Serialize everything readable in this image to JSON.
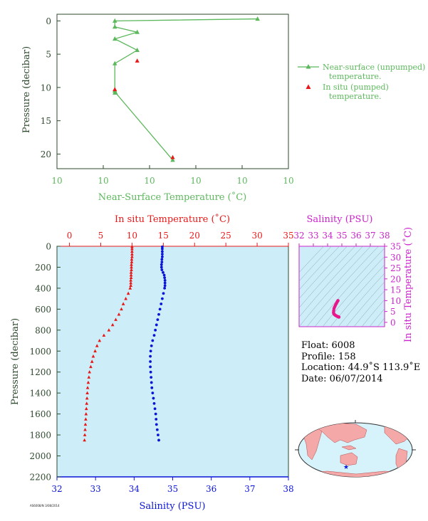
{
  "chart_data": [
    {
      "type": "line",
      "name": "near-surface",
      "xlabel": "Near-Surface Temperature (˚C)",
      "ylabel": "Pressure (decibar)",
      "x_tick_labels": [
        "10",
        "10",
        "10",
        "10",
        "10",
        "10"
      ],
      "y_ticks": [
        0,
        5,
        10,
        15,
        20
      ],
      "ylim": [
        22.2,
        -1
      ],
      "xlim": [
        9.925,
        10.075
      ],
      "y_inverted": true,
      "legend": {
        "placement": "right",
        "entries": [
          "Near-surface (unpumped) temperature.",
          "In situ (pumped) temperature."
        ]
      },
      "series": [
        {
          "name": "Near-surface (unpumped) temperature.",
          "color": "#5cb85c",
          "marker": "triangle",
          "x": [
            10.055,
            9.9625,
            9.9625,
            9.9625,
            9.9625,
            9.9625,
            9.9625,
            9.9625,
            9.9625,
            9.9625,
            10.0
          ],
          "y": [
            -0.3,
            0.0,
            0.9,
            1.7,
            2.7,
            4.4,
            6.4,
            10.5,
            10.8,
            10.8,
            20.9
          ],
          "x_actual": [
            10.055,
            9.9625,
            9.9625,
            9.977,
            9.9625,
            9.977,
            9.9625,
            9.9625,
            9.9625,
            9.963,
            10.0
          ]
        },
        {
          "name": "In situ (pumped) temperature.",
          "color": "#e81818",
          "marker": "triangle",
          "x": [
            9.977,
            9.9625,
            10.0
          ],
          "y": [
            6.0,
            10.3,
            20.5
          ]
        }
      ]
    },
    {
      "type": "scatter",
      "name": "profile",
      "x_top_label": "In situ Temperature (˚C)",
      "x_top_ticks": [
        0,
        5,
        10,
        15,
        20,
        25,
        30,
        35
      ],
      "x_top_lim": [
        -2,
        35
      ],
      "x_bottom_label": "Salinity (PSU)",
      "x_bottom_ticks": [
        32,
        33,
        34,
        35,
        36,
        37,
        38
      ],
      "x_bottom_lim": [
        32,
        38
      ],
      "ylabel": "Pressure (decibar)",
      "y_ticks": [
        0,
        200,
        400,
        600,
        800,
        1000,
        1200,
        1400,
        1600,
        1800,
        2000,
        2200
      ],
      "ylim": [
        2200,
        0
      ],
      "y_inverted": true,
      "series": [
        {
          "name": "temperature",
          "color": "#e81818",
          "marker": "triangle",
          "pressure": [
            5,
            25,
            50,
            75,
            100,
            125,
            150,
            175,
            200,
            225,
            250,
            275,
            300,
            325,
            350,
            375,
            400,
            450,
            500,
            550,
            600,
            650,
            700,
            750,
            800,
            850,
            900,
            950,
            1000,
            1050,
            1100,
            1150,
            1200,
            1250,
            1300,
            1350,
            1400,
            1450,
            1500,
            1550,
            1600,
            1650,
            1700,
            1750,
            1800,
            1850
          ],
          "temperature": [
            10.0,
            10.0,
            10.0,
            10.0,
            10.0,
            9.95,
            9.95,
            9.9,
            9.9,
            9.9,
            9.85,
            9.85,
            9.85,
            9.8,
            9.8,
            9.8,
            9.7,
            9.4,
            9.0,
            8.6,
            8.3,
            7.9,
            7.4,
            6.9,
            6.3,
            5.5,
            4.8,
            4.4,
            4.1,
            3.8,
            3.6,
            3.4,
            3.2,
            3.1,
            3.0,
            2.9,
            2.85,
            2.8,
            2.75,
            2.7,
            2.65,
            2.6,
            2.55,
            2.5,
            2.45,
            2.4
          ]
        },
        {
          "name": "salinity",
          "color": "#0a14d8",
          "marker": "circle",
          "pressure": [
            5,
            25,
            50,
            75,
            100,
            125,
            150,
            175,
            200,
            225,
            250,
            275,
            300,
            325,
            350,
            375,
            400,
            450,
            500,
            550,
            600,
            650,
            700,
            750,
            800,
            850,
            900,
            950,
            1000,
            1050,
            1100,
            1150,
            1200,
            1250,
            1300,
            1350,
            1400,
            1450,
            1500,
            1550,
            1600,
            1650,
            1700,
            1750,
            1800,
            1850
          ],
          "salinity": [
            34.73,
            34.73,
            34.73,
            34.73,
            34.73,
            34.72,
            34.72,
            34.71,
            34.71,
            34.72,
            34.75,
            34.78,
            34.79,
            34.8,
            34.8,
            34.8,
            34.79,
            34.76,
            34.73,
            34.7,
            34.67,
            34.64,
            34.61,
            34.58,
            34.55,
            34.52,
            34.48,
            34.45,
            34.43,
            34.42,
            34.42,
            34.42,
            34.43,
            34.44,
            34.45,
            34.46,
            34.48,
            34.5,
            34.52,
            34.54,
            34.56,
            34.57,
            34.58,
            34.6,
            34.62,
            34.64
          ]
        }
      ]
    },
    {
      "type": "scatter",
      "name": "ts-diagram",
      "xlabel": "Salinity (PSU)",
      "ylabel": "In situ Temperature (˚C)",
      "x_ticks": [
        32,
        33,
        34,
        35,
        36,
        37,
        38
      ],
      "xlim": [
        32,
        38
      ],
      "y_ticks": [
        0,
        5,
        10,
        15,
        20,
        25,
        30,
        35
      ],
      "ylim": [
        -2,
        35
      ],
      "color": "#e8188c",
      "series": [
        {
          "name": "ts",
          "salinity": [
            34.73,
            34.72,
            34.7,
            34.67,
            34.64,
            34.61,
            34.58,
            34.55,
            34.52,
            34.48,
            34.45,
            34.43,
            34.42,
            34.42,
            34.43,
            34.45,
            34.48,
            34.52,
            34.56,
            34.6,
            34.64,
            34.66,
            34.7,
            34.74,
            34.78,
            34.8,
            34.79
          ],
          "temperature": [
            10.0,
            9.95,
            9.7,
            9.4,
            9.0,
            8.6,
            8.3,
            7.9,
            7.4,
            6.9,
            6.3,
            5.5,
            4.8,
            4.4,
            4.1,
            3.8,
            3.6,
            3.4,
            3.2,
            3.0,
            2.9,
            2.8,
            2.7,
            2.6,
            2.5,
            2.45,
            2.4
          ]
        }
      ]
    }
  ],
  "info": {
    "float": "Float:  6008",
    "profile": "Profile:  158",
    "location": "Location:  44.9˚S  113.9˚E",
    "date": "Date:  06/07/2014"
  },
  "footer_text": "AS6008/N 3/08/2014",
  "colors": {
    "green": "#5cb85c",
    "red": "#e81818",
    "blue": "#0a14d8",
    "magenta": "#cc22cc",
    "axis_dark": "#2e4a2e",
    "panel_fill": "#cdeef8",
    "map_land": "#f4a8a8",
    "map_ocean": "#d6f2fb"
  }
}
